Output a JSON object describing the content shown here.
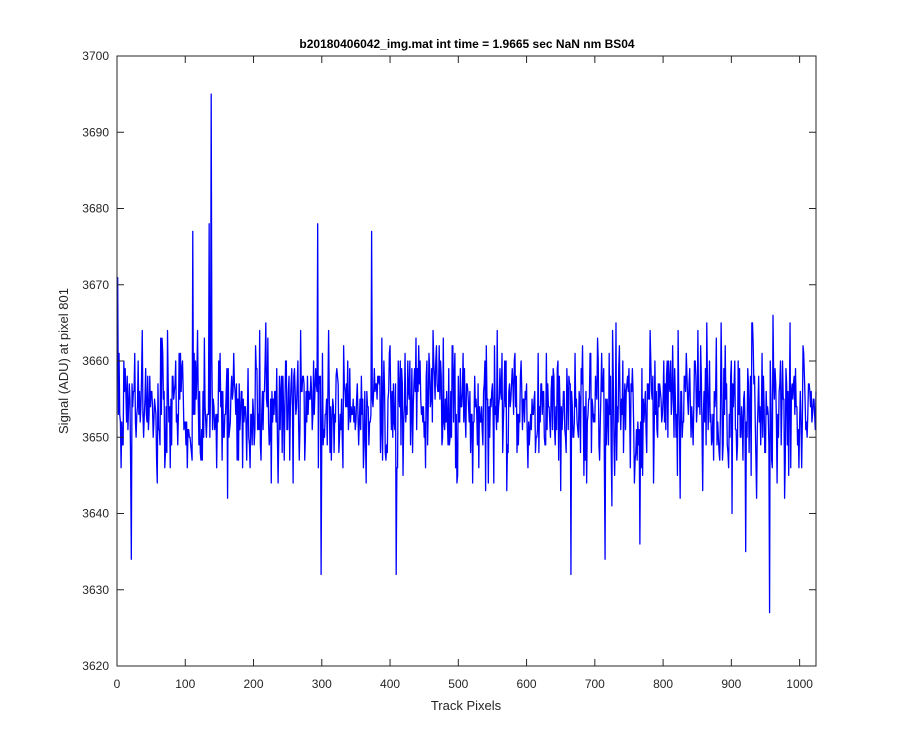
{
  "chart_data": {
    "type": "line",
    "title": "b20180406042_img.mat int time = 1.9665 sec  NaN nm BS04",
    "xlabel": "Track Pixels",
    "ylabel": "Signal (ADU) at pixel 801",
    "xlim": [
      0,
      1024
    ],
    "ylim": [
      3620,
      3700
    ],
    "xticks": [
      0,
      100,
      200,
      300,
      400,
      500,
      600,
      700,
      800,
      900,
      1000
    ],
    "yticks": [
      3620,
      3630,
      3640,
      3650,
      3660,
      3670,
      3680,
      3690,
      3700
    ],
    "grid": false,
    "legend": "none",
    "series": [
      {
        "color": "#0000ff",
        "n_points": 1024,
        "mean": 3654,
        "spread_range": [
          3642,
          3668
        ],
        "notable_points": [
          {
            "x": 137,
            "y": 3695
          },
          {
            "x": 955,
            "y": 3627
          },
          {
            "x": 134,
            "y": 3678
          },
          {
            "x": 110,
            "y": 3677
          },
          {
            "x": 372,
            "y": 3677
          },
          {
            "x": 293,
            "y": 3678
          },
          {
            "x": 298,
            "y": 3632
          },
          {
            "x": 408,
            "y": 3632
          },
          {
            "x": 664,
            "y": 3632
          },
          {
            "x": 20,
            "y": 3634
          },
          {
            "x": 714,
            "y": 3634
          },
          {
            "x": 765,
            "y": 3636
          },
          {
            "x": 920,
            "y": 3635
          },
          {
            "x": 0,
            "y": 3671
          }
        ]
      }
    ]
  }
}
